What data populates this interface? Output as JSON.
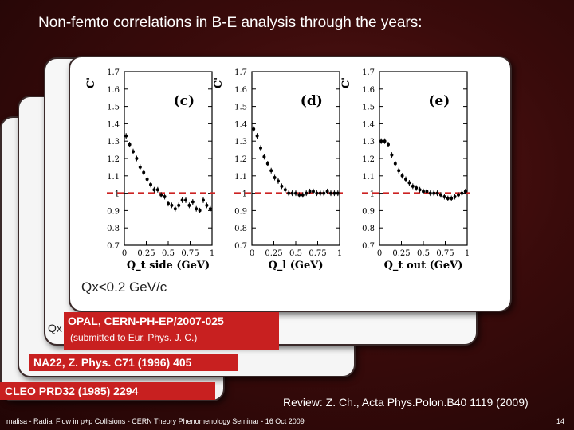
{
  "slide": {
    "title": "Non-femto correlations in B-E analysis through the years:",
    "qx_label": "Qx<0.2 GeV/c",
    "qx_small": "Qx",
    "opal_ref": "OPAL, CERN-PH-EP/2007-025",
    "opal_note": "(submitted to Eur. Phys. J. C.)",
    "na22_ref": "NA22, Z. Phys. C71 (1996) 405",
    "cleo_ref": "CLEO PRD32 (1985) 2294",
    "review": "Review: Z. Ch., Acta Phys.Polon.B40 1119 (2009)",
    "footer": "malisa - Radial Flow in p+p Collisions - CERN Theory Phenomenology Seminar - 16 Oct 2009",
    "page": "14"
  },
  "colors": {
    "accent_red": "#c82020",
    "reference_line": "#cc2222"
  },
  "chart_data": [
    {
      "type": "scatter",
      "panel_label": "(c)",
      "ylabel": "C'",
      "xlabel": "Q_t side (GeV)",
      "xlim": [
        0,
        1
      ],
      "ylim": [
        0.7,
        1.7
      ],
      "reference_y": 1.0,
      "xticks": [
        "0",
        "0.25",
        "0.5",
        "0.75",
        "1"
      ],
      "yticks": [
        "0.7",
        "0.8",
        "0.9",
        "1",
        "1.1",
        "1.2",
        "1.3",
        "1.4",
        "1.5",
        "1.6",
        "1.7"
      ],
      "points": [
        [
          0.02,
          1.33
        ],
        [
          0.06,
          1.28
        ],
        [
          0.1,
          1.24
        ],
        [
          0.14,
          1.2
        ],
        [
          0.18,
          1.15
        ],
        [
          0.22,
          1.12
        ],
        [
          0.26,
          1.08
        ],
        [
          0.3,
          1.05
        ],
        [
          0.34,
          1.02
        ],
        [
          0.38,
          1.02
        ],
        [
          0.42,
          0.99
        ],
        [
          0.46,
          0.98
        ],
        [
          0.5,
          0.94
        ],
        [
          0.54,
          0.93
        ],
        [
          0.58,
          0.91
        ],
        [
          0.62,
          0.93
        ],
        [
          0.66,
          0.96
        ],
        [
          0.7,
          0.96
        ],
        [
          0.74,
          0.93
        ],
        [
          0.78,
          0.95
        ],
        [
          0.82,
          0.91
        ],
        [
          0.86,
          0.9
        ],
        [
          0.9,
          0.96
        ],
        [
          0.94,
          0.93
        ],
        [
          0.98,
          0.91
        ]
      ]
    },
    {
      "type": "scatter",
      "panel_label": "(d)",
      "ylabel": "C'",
      "xlabel": "Q_l (GeV)",
      "xlim": [
        0,
        1
      ],
      "ylim": [
        0.7,
        1.7
      ],
      "reference_y": 1.0,
      "xticks": [
        "0",
        "0.25",
        "0.5",
        "0.75",
        "1"
      ],
      "yticks": [
        "0.7",
        "0.8",
        "0.9",
        "1",
        "1.1",
        "1.2",
        "1.3",
        "1.4",
        "1.5",
        "1.6",
        "1.7"
      ],
      "points": [
        [
          0.02,
          1.37
        ],
        [
          0.06,
          1.33
        ],
        [
          0.1,
          1.26
        ],
        [
          0.14,
          1.21
        ],
        [
          0.18,
          1.17
        ],
        [
          0.22,
          1.13
        ],
        [
          0.26,
          1.09
        ],
        [
          0.3,
          1.07
        ],
        [
          0.34,
          1.04
        ],
        [
          0.38,
          1.02
        ],
        [
          0.42,
          1.0
        ],
        [
          0.46,
          1.0
        ],
        [
          0.5,
          1.0
        ],
        [
          0.54,
          0.99
        ],
        [
          0.58,
          0.99
        ],
        [
          0.62,
          1.0
        ],
        [
          0.66,
          1.01
        ],
        [
          0.7,
          1.01
        ],
        [
          0.74,
          1.0
        ],
        [
          0.78,
          1.0
        ],
        [
          0.82,
          1.0
        ],
        [
          0.86,
          1.01
        ],
        [
          0.9,
          1.0
        ],
        [
          0.94,
          1.0
        ],
        [
          0.98,
          1.0
        ]
      ]
    },
    {
      "type": "scatter",
      "panel_label": "(e)",
      "ylabel": "C'",
      "xlabel": "Q_t out (GeV)",
      "xlim": [
        0,
        1
      ],
      "ylim": [
        0.7,
        1.7
      ],
      "reference_y": 1.0,
      "xticks": [
        "0",
        "0.25",
        "0.5",
        "0.75",
        "1"
      ],
      "yticks": [
        "0.7",
        "0.8",
        "0.9",
        "1",
        "1.1",
        "1.2",
        "1.3",
        "1.4",
        "1.5",
        "1.6",
        "1.7"
      ],
      "points": [
        [
          0.02,
          1.3
        ],
        [
          0.06,
          1.3
        ],
        [
          0.1,
          1.28
        ],
        [
          0.14,
          1.22
        ],
        [
          0.18,
          1.17
        ],
        [
          0.22,
          1.13
        ],
        [
          0.26,
          1.1
        ],
        [
          0.3,
          1.08
        ],
        [
          0.34,
          1.06
        ],
        [
          0.38,
          1.04
        ],
        [
          0.42,
          1.03
        ],
        [
          0.46,
          1.02
        ],
        [
          0.5,
          1.01
        ],
        [
          0.54,
          1.01
        ],
        [
          0.58,
          1.0
        ],
        [
          0.62,
          1.0
        ],
        [
          0.66,
          1.0
        ],
        [
          0.7,
          0.99
        ],
        [
          0.74,
          0.98
        ],
        [
          0.78,
          0.97
        ],
        [
          0.82,
          0.97
        ],
        [
          0.86,
          0.98
        ],
        [
          0.9,
          0.99
        ],
        [
          0.94,
          1.0
        ],
        [
          0.98,
          1.01
        ]
      ]
    }
  ]
}
